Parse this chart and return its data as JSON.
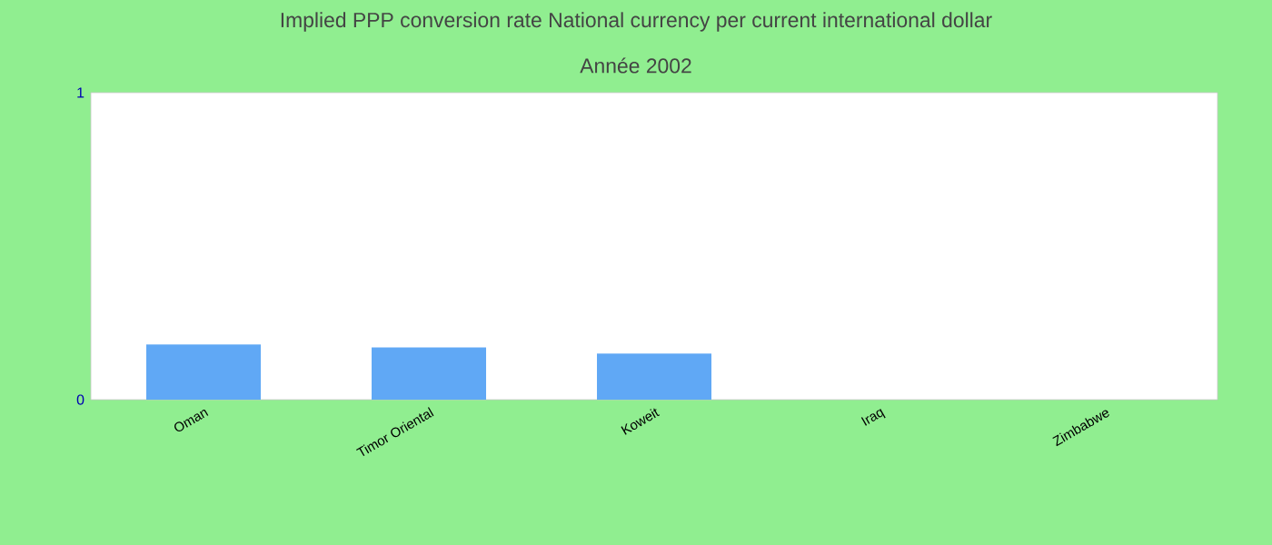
{
  "chart_data": {
    "type": "bar",
    "title": "Implied PPP conversion rate  National currency per current international dollar",
    "subtitle": "Année 2002",
    "categories": [
      "Oman",
      "Timor Oriental",
      "Koweit",
      "Iraq",
      "Zimbabwe"
    ],
    "values": [
      0.18,
      0.17,
      0.15,
      0,
      0
    ],
    "color": "#60a8f5",
    "ylim": [
      0,
      1
    ],
    "yticks": [
      0,
      1
    ],
    "grid": false
  }
}
